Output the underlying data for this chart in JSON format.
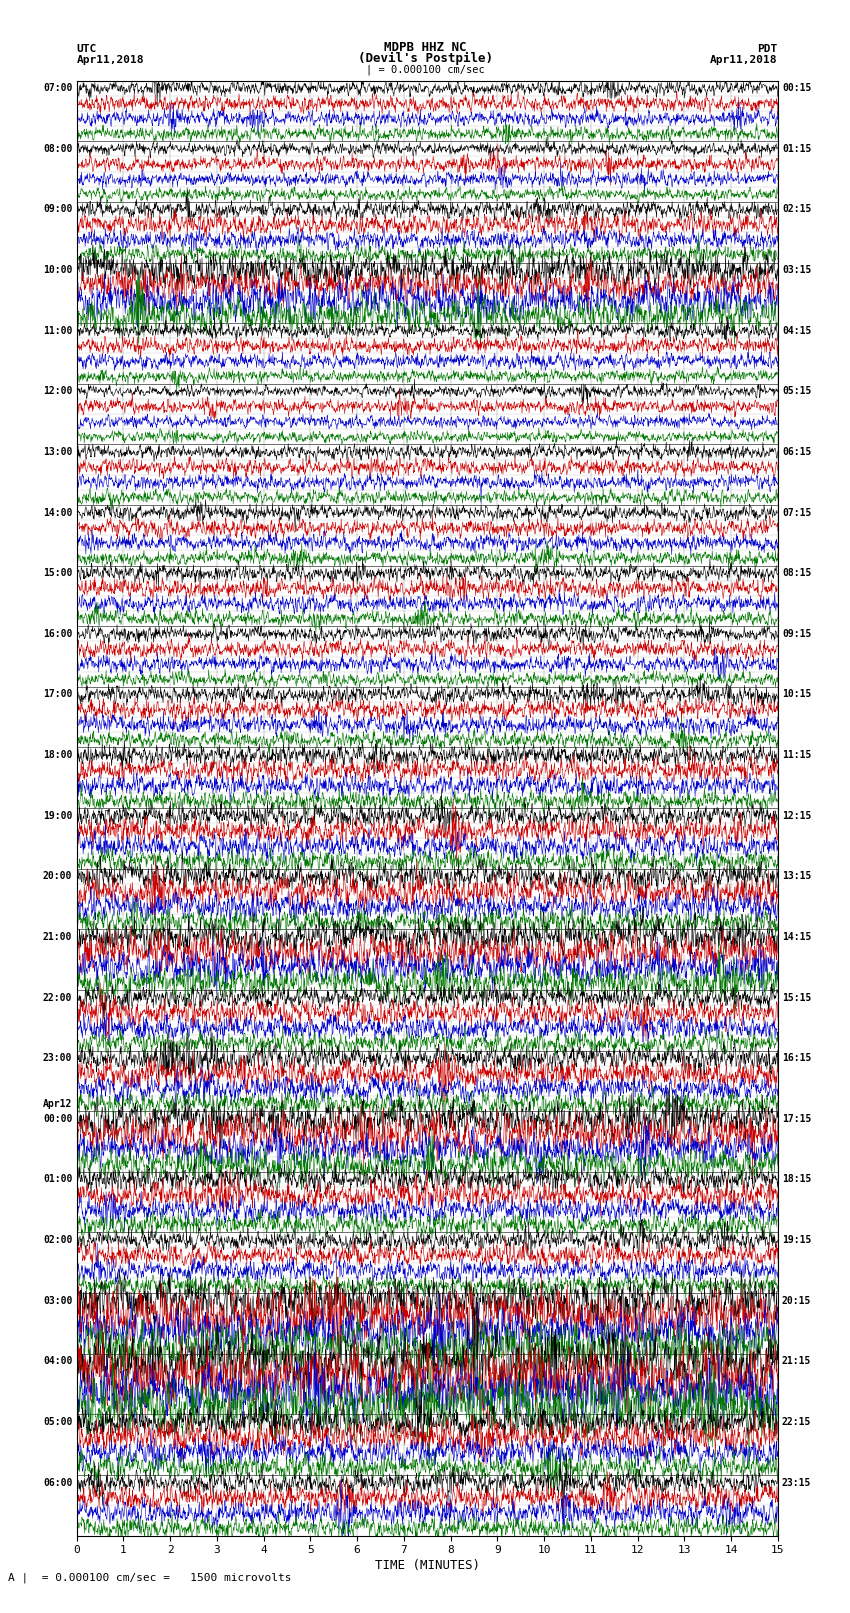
{
  "title_line1": "MDPB HHZ NC",
  "title_line2": "(Devil's Postpile)",
  "scale_label": "| = 0.000100 cm/sec",
  "left_header_line1": "UTC",
  "left_header_line2": "Apr11,2018",
  "right_header_line1": "PDT",
  "right_header_line2": "Apr11,2018",
  "bottom_label": "TIME (MINUTES)",
  "scale_note": "= 0.000100 cm/sec =   1500 microvolts",
  "scale_letter": "A",
  "fig_width": 8.5,
  "fig_height": 16.13,
  "dpi": 100,
  "bg_color": "#ffffff",
  "trace_colors": [
    "#000000",
    "#cc0000",
    "#0000cc",
    "#007700"
  ],
  "left_times": [
    "07:00",
    "08:00",
    "09:00",
    "10:00",
    "11:00",
    "12:00",
    "13:00",
    "14:00",
    "15:00",
    "16:00",
    "17:00",
    "18:00",
    "19:00",
    "20:00",
    "21:00",
    "22:00",
    "23:00",
    "00:00",
    "01:00",
    "02:00",
    "03:00",
    "04:00",
    "05:00",
    "06:00"
  ],
  "right_times": [
    "00:15",
    "01:15",
    "02:15",
    "03:15",
    "04:15",
    "05:15",
    "06:15",
    "07:15",
    "08:15",
    "09:15",
    "10:15",
    "11:15",
    "12:15",
    "13:15",
    "14:15",
    "15:15",
    "16:15",
    "17:15",
    "18:15",
    "19:15",
    "20:15",
    "21:15",
    "22:15",
    "23:15"
  ],
  "apr12_after_row": 16,
  "n_rows": 24,
  "traces_per_row": 4,
  "x_min": 0,
  "x_max": 15,
  "x_ticks": [
    0,
    1,
    2,
    3,
    4,
    5,
    6,
    7,
    8,
    9,
    10,
    11,
    12,
    13,
    14,
    15
  ],
  "noise_seed": 42,
  "amplitude_scale": 0.38
}
